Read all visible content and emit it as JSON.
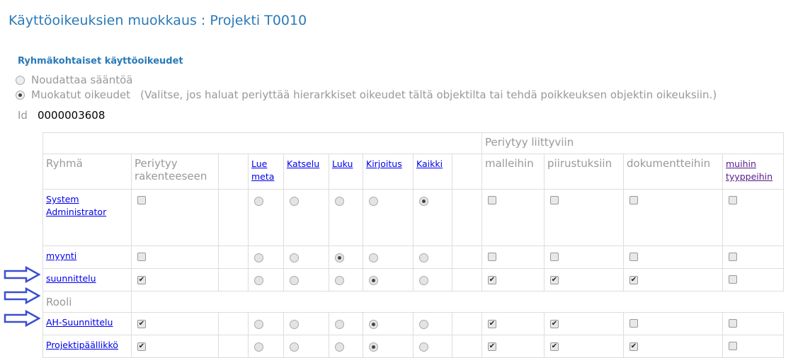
{
  "title": "Käyttöoikeuksien muokkaus : Projekti T0010",
  "section": "Ryhmäkohtaiset käyttöoikeudet",
  "options": [
    {
      "label": "Noudattaa sääntöä",
      "selected": false
    },
    {
      "label": "Muokatut oikeudet",
      "hint": "(Valitse, jos haluat periyttää hierarkkiset oikeudet tältä objektilta tai tehdä poikkeuksen objektin oikeuksiin.)",
      "selected": true
    }
  ],
  "id_label": "Id",
  "id_value": "0000003608",
  "table": {
    "group_header": "Periytyy liittyviin",
    "headers": {
      "group": "Ryhmä",
      "inherit": "Periytyy rakenteeseen",
      "lue_meta": "Lue meta",
      "katselu": "Katselu",
      "luku": "Luku",
      "kirjoitus": "Kirjoitus",
      "kaikki": "Kaikki",
      "malleihin": "malleihin",
      "piirustuksiin": "piirustuksiin",
      "dokumentteihin": "dokumentteihin",
      "muihin": "muihin tyyppeihin"
    },
    "role_label": "Rooli",
    "rows": [
      {
        "name": "System Administrator",
        "inherit": false,
        "access": "Kaikki",
        "related": [
          false,
          false,
          false,
          false
        ]
      },
      {
        "name": "myynti",
        "inherit": false,
        "access": "Luku",
        "related": [
          false,
          false,
          false,
          false
        ]
      },
      {
        "name": "suunnittelu",
        "inherit": true,
        "access": "Kirjoitus",
        "related": [
          true,
          true,
          true,
          false
        ]
      },
      {
        "name": "AH-Suunnittelu",
        "inherit": true,
        "access": "Kirjoitus",
        "related": [
          true,
          true,
          false,
          false
        ]
      },
      {
        "name": "Projektipäällikkö",
        "inherit": true,
        "access": "Kirjoitus",
        "related": [
          true,
          true,
          true,
          false
        ]
      }
    ]
  },
  "arrow_color": "#3a4fd0"
}
